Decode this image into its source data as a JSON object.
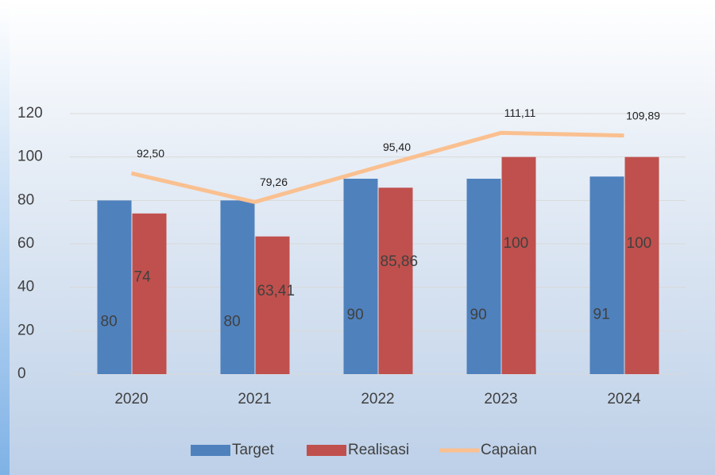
{
  "chart_data": {
    "type": "bar_line",
    "categories": [
      "2020",
      "2021",
      "2022",
      "2023",
      "2024"
    ],
    "series": [
      {
        "name": "Target",
        "type": "bar",
        "color": "#4f81bd",
        "values": [
          80,
          80,
          90,
          90,
          91
        ]
      },
      {
        "name": "Realisasi",
        "type": "bar",
        "color": "#c0504d",
        "values": [
          74,
          63.41,
          85.86,
          100,
          100
        ],
        "value_labels": [
          "74",
          "63,41",
          "85,86",
          "100",
          "100"
        ]
      },
      {
        "name": "Capaian",
        "type": "line",
        "color": "#fac090",
        "values": [
          92.5,
          79.26,
          95.4,
          111.11,
          109.89
        ],
        "value_labels": [
          "92,50",
          "79,26",
          "95,40",
          "111,11",
          "109,89"
        ]
      }
    ],
    "ylim": [
      0,
      120
    ],
    "yticks": [
      0,
      20,
      40,
      60,
      80,
      100,
      120
    ],
    "grid": true,
    "legend": "bottom"
  }
}
